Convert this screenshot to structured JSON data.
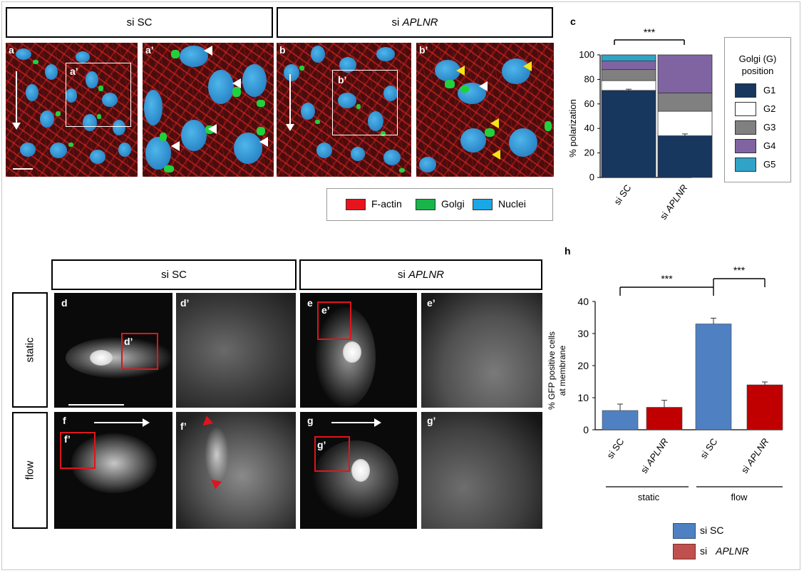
{
  "panel_a_b": {
    "header_left": "si SC",
    "header_right_prefix": "si ",
    "header_right_gene": "APLNR",
    "labels": [
      "a",
      "a’",
      "b",
      "b’"
    ],
    "inset_labels": [
      "a’",
      "b’"
    ]
  },
  "legend_stain": {
    "items": [
      {
        "label": "F-actin",
        "color": "#e8141c"
      },
      {
        "label": "Golgi",
        "color": "#18b64a"
      },
      {
        "label": "Nuclei",
        "color": "#1aa7e6"
      }
    ]
  },
  "panel_c": {
    "letter": "c",
    "significance": "***",
    "ylabel": "% polarization",
    "legend_title_line1": "Golgi (G)",
    "legend_title_line2": "position"
  },
  "panel_d_g": {
    "header_left": "si SC",
    "header_right_prefix": "si ",
    "header_right_gene": "APLNR",
    "row_static": "static",
    "row_flow": "flow",
    "labels": [
      "d",
      "d’",
      "e",
      "e’",
      "f",
      "f’",
      "g",
      "g’"
    ],
    "inset_labels": [
      "d’",
      "e’",
      "f’",
      "g’"
    ]
  },
  "panel_h": {
    "letter": "h",
    "ylabel_line1": "% GFP positive cells",
    "ylabel_line2": "at membrane",
    "sig_left": "***",
    "sig_right": "***",
    "group_static": "static",
    "group_flow": "flow",
    "legend": [
      {
        "label_prefix": "si SC",
        "label_gene": "",
        "color": "#4f81c2"
      },
      {
        "label_prefix": "si ",
        "label_gene": "APLNR",
        "color": "#c0504d"
      }
    ]
  },
  "chart_data": [
    {
      "type": "bar",
      "stacked": true,
      "categories": [
        "si SC",
        "si APLNR"
      ],
      "series": [
        {
          "name": "G1",
          "color": "#17375e",
          "values": [
            71,
            34
          ]
        },
        {
          "name": "G2",
          "color": "#ffffff",
          "values": [
            8,
            20
          ]
        },
        {
          "name": "G3",
          "color": "#808080",
          "values": [
            9,
            15
          ]
        },
        {
          "name": "G4",
          "color": "#8064a2",
          "values": [
            7,
            31
          ]
        },
        {
          "name": "G5",
          "color": "#31a3c6",
          "values": [
            5,
            0
          ]
        }
      ],
      "error": [
        1,
        1.5
      ],
      "ylabel": "% polarization",
      "ylim": [
        0,
        100
      ],
      "yticks": [
        0,
        20,
        40,
        60,
        80,
        100
      ],
      "significance": "***"
    },
    {
      "type": "bar",
      "categories": [
        "si SC",
        "si APLNR",
        "si SC",
        "si APLNR"
      ],
      "groups": [
        "static",
        "static",
        "flow",
        "flow"
      ],
      "values": [
        6,
        7,
        33,
        14
      ],
      "errors": [
        2,
        2.2,
        1.8,
        0.9
      ],
      "colors": [
        "#4f81c2",
        "#c00000",
        "#4f81c2",
        "#c00000"
      ],
      "ylabel": "% GFP positive cells at membrane",
      "ylim": [
        0,
        40
      ],
      "yticks": [
        0,
        10,
        20,
        30,
        40
      ],
      "significance": [
        "***",
        "***"
      ]
    }
  ]
}
